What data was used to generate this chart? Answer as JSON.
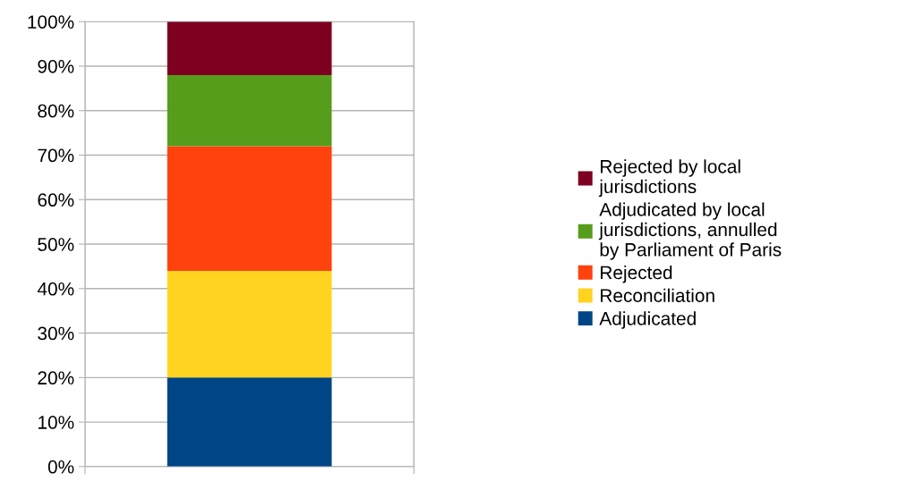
{
  "chart_data": {
    "type": "bar",
    "stacked": true,
    "categories": [
      null
    ],
    "series": [
      {
        "name": "Adjudicated",
        "color": "#004586",
        "values": [
          20
        ]
      },
      {
        "name": "Reconciliation",
        "color": "#ffd320",
        "values": [
          24
        ]
      },
      {
        "name": "Rejected",
        "color": "#ff420e",
        "values": [
          28
        ]
      },
      {
        "name": "Adjudicated by local jurisdictions, annulled by Parliament of Paris",
        "color": "#579d1c",
        "values": [
          16
        ]
      },
      {
        "name": "Rejected by local jurisdictions",
        "color": "#7e0021",
        "values": [
          12
        ]
      }
    ],
    "ylim": [
      0,
      100
    ],
    "yticks": [
      {
        "value": 0,
        "label": "0%"
      },
      {
        "value": 10,
        "label": "10%"
      },
      {
        "value": 20,
        "label": "20%"
      },
      {
        "value": 30,
        "label": "30%"
      },
      {
        "value": 40,
        "label": "40%"
      },
      {
        "value": 50,
        "label": "50%"
      },
      {
        "value": 60,
        "label": "60%"
      },
      {
        "value": 70,
        "label": "70%"
      },
      {
        "value": 80,
        "label": "80%"
      },
      {
        "value": 90,
        "label": "90%"
      },
      {
        "value": 100,
        "label": "100%"
      }
    ],
    "grid": "y",
    "legend": "right"
  }
}
